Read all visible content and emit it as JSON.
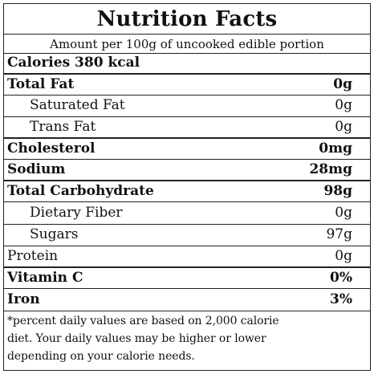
{
  "title": "Nutrition Facts",
  "serving": "Amount per 100g of uncooked edible portion",
  "calories": "Calories 380 kcal",
  "nutrients": [
    {
      "name": "Total Fat",
      "value": "0g"
    },
    {
      "name": "Saturated Fat",
      "value": "0g"
    },
    {
      "name": "Trans Fat",
      "value": "0g"
    },
    {
      "name": "Cholesterol",
      "value": "0mg"
    },
    {
      "name": "Sodium",
      "value": "28mg"
    },
    {
      "name": "Total Carbohydrate",
      "value": "98g"
    },
    {
      "name": "Dietary Fiber",
      "value": "0g"
    },
    {
      "name": "Sugars",
      "value": "97g"
    },
    {
      "name": "Protein",
      "value": "0g"
    },
    {
      "name": "Vitamin C",
      "value": "0%"
    },
    {
      "name": "Iron",
      "value": "3%"
    }
  ],
  "footnote": {
    "line1": "*percent daily values are based on 2,000 calorie",
    "line2": "diet. Your daily values may be higher or lower",
    "line3": "depending on your calorie needs."
  },
  "colors": {
    "text": "#111111",
    "rule": "#222222",
    "background": "#ffffff"
  }
}
